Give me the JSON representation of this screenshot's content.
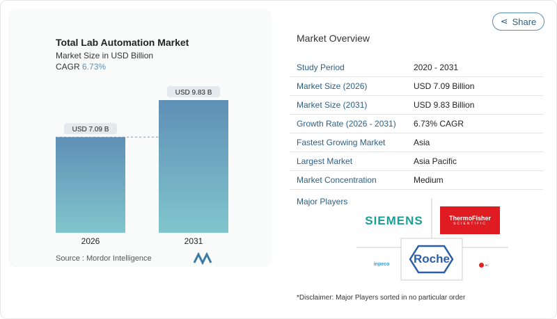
{
  "chart_data": {
    "type": "bar",
    "title": "Total Lab Automation Market",
    "subtitle": "Market Size in USD Billion",
    "cagr_label": "CAGR",
    "cagr_value": "6.73%",
    "categories": [
      "2026",
      "2031"
    ],
    "values": [
      7.09,
      9.83
    ],
    "data_labels": [
      "USD 7.09 B",
      "USD 9.83 B"
    ],
    "ylim": [
      0,
      9.83
    ],
    "bar_color": "#6a9fbf",
    "grid": false,
    "reference_line": "dashed at 2026 value"
  },
  "source": "Source :  Mordor Intelligence",
  "share_label": "Share",
  "overview": {
    "title": "Market Overview",
    "rows": [
      {
        "k": "Study Period",
        "v": "2020 - 2031"
      },
      {
        "k": "Market Size (2026)",
        "v": "USD 7.09 Billion"
      },
      {
        "k": "Market Size (2031)",
        "v": "USD 9.83 Billion"
      },
      {
        "k": "Growth Rate (2026 - 2031)",
        "v": "6.73% CAGR"
      },
      {
        "k": "Fastest Growing Market",
        "v": "Asia"
      },
      {
        "k": "Largest Market",
        "v": "Asia Pacific"
      },
      {
        "k": "Market Concentration",
        "v": "Medium"
      }
    ]
  },
  "major_players": {
    "title": "Major Players",
    "logos": [
      "SIEMENS",
      "ThermoFisher SCIENTIFIC",
      "Roche",
      "inpeco",
      "Beckman Coulter"
    ]
  },
  "disclaimer": "*Disclaimer: Major Players sorted in no particular order"
}
